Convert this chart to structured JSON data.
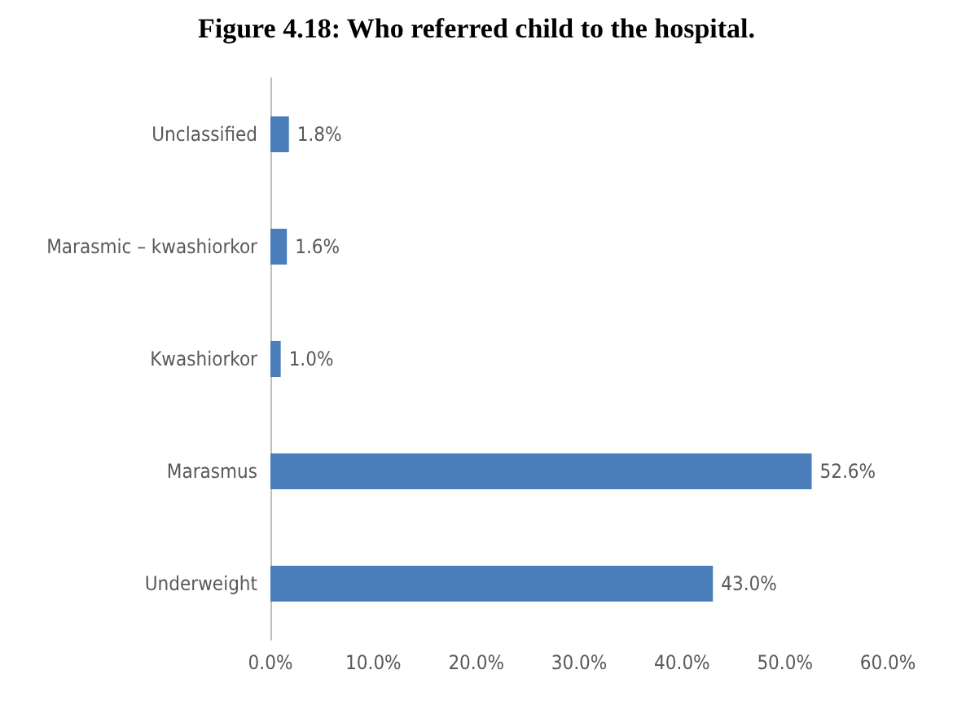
{
  "chart_data": {
    "type": "bar",
    "orientation": "horizontal",
    "title": "Figure 4.18: Who referred child to the hospital.",
    "categories": [
      "Unclassified",
      "Marasmic – kwashiorkor",
      "Kwashiorkor",
      "Marasmus",
      "Underweight"
    ],
    "values": [
      1.8,
      1.6,
      1.0,
      52.6,
      43.0
    ],
    "value_labels": [
      "1.8%",
      "1.6%",
      "1.0%",
      "52.6%",
      "43.0%"
    ],
    "color": "#4a7ebb",
    "xlim": [
      0,
      60
    ],
    "xticks": [
      {
        "value": 0,
        "label": "0.0%"
      },
      {
        "value": 10,
        "label": "10.0%"
      },
      {
        "value": 20,
        "label": "20.0%"
      },
      {
        "value": 30,
        "label": "30.0%"
      },
      {
        "value": 40,
        "label": "40.0%"
      },
      {
        "value": 50,
        "label": "50.0%"
      },
      {
        "value": 60,
        "label": "60.0%"
      }
    ],
    "grid": false
  }
}
